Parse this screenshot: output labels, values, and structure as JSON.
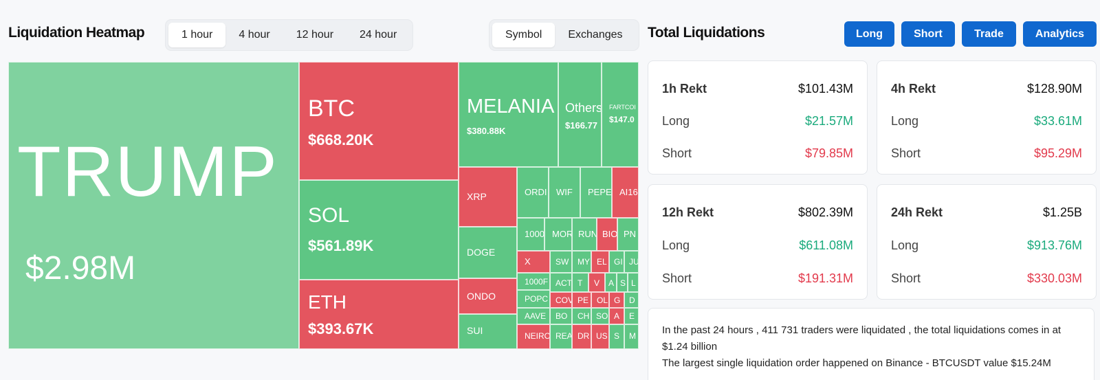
{
  "heatmap": {
    "title": "Liquidation Heatmap",
    "time_tabs": [
      "1 hour",
      "4 hour",
      "12 hour",
      "24 hour"
    ],
    "active_time_tab": "1 hour",
    "view_tabs": [
      "Symbol",
      "Exchanges"
    ],
    "active_view_tab": "Symbol",
    "tiles": {
      "trump": {
        "symbol": "TRUMP",
        "value": "$2.98M"
      },
      "btc": {
        "symbol": "BTC",
        "value": "$668.20K"
      },
      "sol": {
        "symbol": "SOL",
        "value": "$561.89K"
      },
      "eth": {
        "symbol": "ETH",
        "value": "$393.67K"
      },
      "melania": {
        "symbol": "MELANIA",
        "value": "$380.88K"
      },
      "others": {
        "symbol": "Others",
        "value": "$166.77"
      },
      "fartcoin": {
        "symbol": "FARTCOI",
        "value": "$147.0"
      },
      "xrp": {
        "symbol": "XRP"
      },
      "doge": {
        "symbol": "DOGE"
      },
      "ondo": {
        "symbol": "ONDO"
      },
      "sui": {
        "symbol": "SUI"
      },
      "ordi": {
        "symbol": "ORDI"
      },
      "wif": {
        "symbol": "WIF"
      },
      "pepe": {
        "symbol": "PEPE"
      },
      "ai16": {
        "symbol": "AI16"
      },
      "t1000": {
        "symbol": "1000"
      },
      "mor": {
        "symbol": "MOR"
      },
      "run": {
        "symbol": "RUN"
      },
      "bio": {
        "symbol": "BIO"
      },
      "pn": {
        "symbol": "PN"
      },
      "x": {
        "symbol": "X"
      },
      "sw": {
        "symbol": "SW"
      },
      "my": {
        "symbol": "MY"
      },
      "el": {
        "symbol": "EL"
      },
      "gi": {
        "symbol": "GI"
      },
      "ju": {
        "symbol": "JU"
      },
      "t1000f": {
        "symbol": "1000F"
      },
      "act": {
        "symbol": "ACT"
      },
      "tt": {
        "symbol": "T"
      },
      "vv": {
        "symbol": "V"
      },
      "aa": {
        "symbol": "A"
      },
      "ss": {
        "symbol": "S"
      },
      "ll": {
        "symbol": "L"
      },
      "popc": {
        "symbol": "POPC"
      },
      "cov": {
        "symbol": "COV"
      },
      "pe": {
        "symbol": "PE"
      },
      "ol": {
        "symbol": "OL"
      },
      "gg": {
        "symbol": "G"
      },
      "dd": {
        "symbol": "D"
      },
      "aave": {
        "symbol": "AAVE"
      },
      "bo": {
        "symbol": "BO"
      },
      "ch": {
        "symbol": "CH"
      },
      "so": {
        "symbol": "SO"
      },
      "a2": {
        "symbol": "A"
      },
      "ee": {
        "symbol": "E"
      },
      "neir": {
        "symbol": "NEIRO"
      },
      "rea": {
        "symbol": "REA"
      },
      "dr": {
        "symbol": "DR"
      },
      "us": {
        "symbol": "US"
      },
      "s2": {
        "symbol": "S"
      },
      "mm": {
        "symbol": "M"
      }
    }
  },
  "totals": {
    "title": "Total Liquidations",
    "buttons": [
      "Long",
      "Short",
      "Trade",
      "Analytics"
    ],
    "cards": [
      {
        "label": "1h Rekt",
        "total": "$101.43M",
        "long_label": "Long",
        "long": "$21.57M",
        "short_label": "Short",
        "short": "$79.85M"
      },
      {
        "label": "4h Rekt",
        "total": "$128.90M",
        "long_label": "Long",
        "long": "$33.61M",
        "short_label": "Short",
        "short": "$95.29M"
      },
      {
        "label": "12h Rekt",
        "total": "$802.39M",
        "long_label": "Long",
        "long": "$611.08M",
        "short_label": "Short",
        "short": "$191.31M"
      },
      {
        "label": "24h Rekt",
        "total": "$1.25B",
        "long_label": "Long",
        "long": "$913.76M",
        "short_label": "Short",
        "short": "$330.03M"
      }
    ],
    "summary_line1": "In the past 24 hours , 411 731 traders were liquidated , the total liquidations comes in at $1.24 billion",
    "summary_line2": "The largest single liquidation order happened on Binance - BTCUSDT value $15.24M"
  },
  "colors": {
    "long_green": "#1aaa7c",
    "short_red": "#e23a4c",
    "tile_green": "#5ec684",
    "tile_red": "#e4555f",
    "button_blue": "#1068cf"
  }
}
